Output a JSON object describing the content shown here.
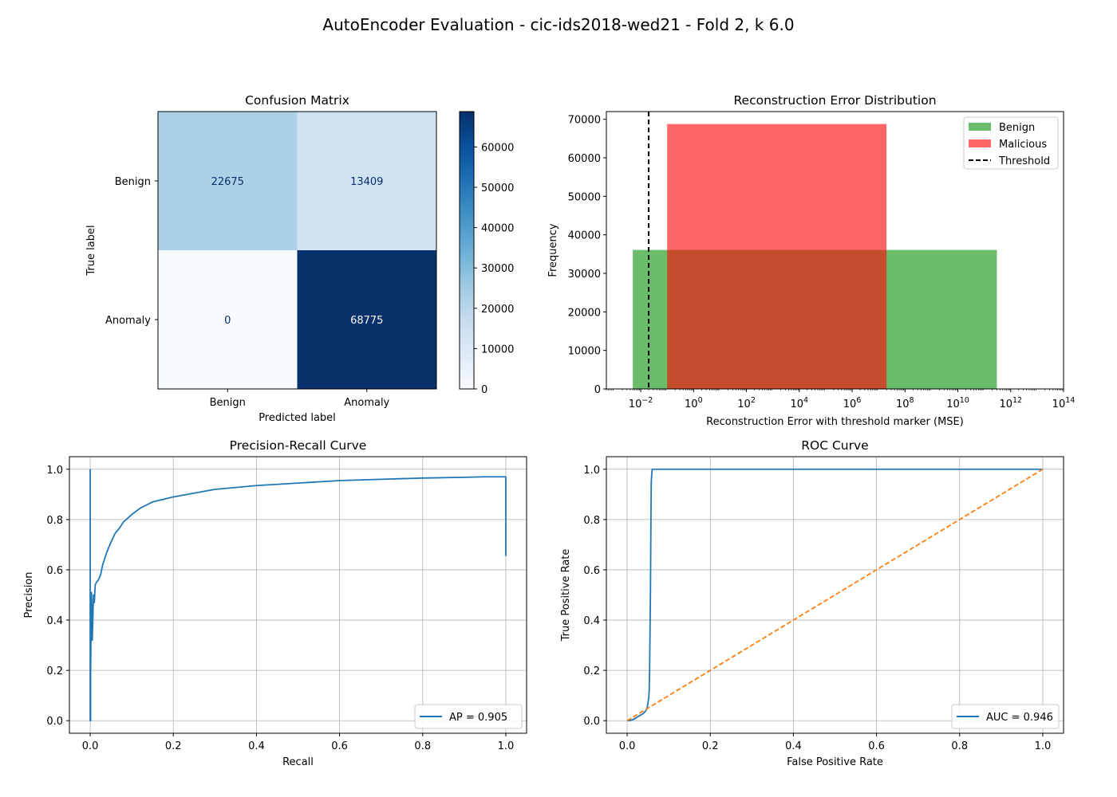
{
  "suptitle": "AutoEncoder Evaluation - cic-ids2018-wed21 - Fold 2, k 6.0",
  "chart_data": [
    {
      "type": "heatmap",
      "title": "Confusion Matrix",
      "xlabel": "Predicted label",
      "ylabel": "True label",
      "x_categories": [
        "Benign",
        "Anomaly"
      ],
      "y_categories": [
        "Benign",
        "Anomaly"
      ],
      "matrix": [
        [
          22675,
          13409
        ],
        [
          0,
          68775
        ]
      ],
      "colormap": "Blues",
      "colorbar": {
        "min": 0,
        "max": 68775,
        "ticks": [
          0,
          10000,
          20000,
          30000,
          40000,
          50000,
          60000
        ]
      }
    },
    {
      "type": "bar",
      "title": "Reconstruction Error Distribution",
      "xlabel": "Reconstruction Error with threshold marker (MSE)",
      "ylabel": "Frequency",
      "xscale": "log",
      "xlim": [
        0.0005,
        100000000000000.0
      ],
      "ylim": [
        0,
        72000
      ],
      "xtick_exponents": [
        -2,
        0,
        2,
        4,
        6,
        8,
        10,
        12,
        14
      ],
      "yticks": [
        0,
        10000,
        20000,
        30000,
        40000,
        50000,
        60000,
        70000
      ],
      "legend_position": "top-right",
      "series": [
        {
          "name": "Benign",
          "color": "#2ca02c",
          "opacity": 0.7,
          "bins": [
            {
              "x_start": 0.005,
              "x_end": 300000000000.0,
              "count": 36084
            }
          ]
        },
        {
          "name": "Malicious",
          "color": "#ff0000",
          "opacity": 0.6,
          "bins": [
            {
              "x_start": 0.1,
              "x_end": 20000000.0,
              "count": 68775
            }
          ]
        }
      ],
      "threshold": {
        "name": "Threshold",
        "x": 0.02,
        "style": "dashed",
        "color": "#000000"
      }
    },
    {
      "type": "line",
      "title": "Precision-Recall Curve",
      "xlabel": "Recall",
      "ylabel": "Precision",
      "xlim": [
        -0.05,
        1.05
      ],
      "ylim": [
        -0.05,
        1.05
      ],
      "xticks": [
        "0.0",
        "0.2",
        "0.4",
        "0.6",
        "0.8",
        "1.0"
      ],
      "yticks": [
        "0.0",
        "0.2",
        "0.4",
        "0.6",
        "0.8",
        "1.0"
      ],
      "grid": true,
      "legend_position": "bottom-right",
      "series": [
        {
          "name": "AP = 0.905",
          "color": "#1f77b4",
          "x": [
            0,
            0,
            0.001,
            0.001,
            0.002,
            0.003,
            0.004,
            0.004,
            0.005,
            0.006,
            0.007,
            0.008,
            0.01,
            0.012,
            0.015,
            0.02,
            0.025,
            0.03,
            0.04,
            0.05,
            0.06,
            0.07,
            0.08,
            0.1,
            0.12,
            0.15,
            0.2,
            0.3,
            0.4,
            0.5,
            0.6,
            0.7,
            0.8,
            0.9,
            0.95,
            1.0,
            1.0
          ],
          "y": [
            1.0,
            0.0,
            0.0,
            0.2,
            0.35,
            0.51,
            0.45,
            0.33,
            0.32,
            0.38,
            0.45,
            0.5,
            0.47,
            0.54,
            0.55,
            0.56,
            0.58,
            0.62,
            0.67,
            0.71,
            0.745,
            0.765,
            0.79,
            0.82,
            0.845,
            0.87,
            0.89,
            0.92,
            0.935,
            0.945,
            0.955,
            0.96,
            0.965,
            0.968,
            0.97,
            0.97,
            0.655
          ]
        }
      ]
    },
    {
      "type": "line",
      "title": "ROC Curve",
      "xlabel": "False Positive Rate",
      "ylabel": "True Positive Rate",
      "xlim": [
        -0.05,
        1.05
      ],
      "ylim": [
        -0.05,
        1.05
      ],
      "xticks": [
        "0.0",
        "0.2",
        "0.4",
        "0.6",
        "0.8",
        "1.0"
      ],
      "yticks": [
        "0.0",
        "0.2",
        "0.4",
        "0.6",
        "0.8",
        "1.0"
      ],
      "grid": true,
      "legend_position": "bottom-right",
      "series": [
        {
          "name": "AUC = 0.946",
          "color": "#1f77b4",
          "x": [
            0,
            0.005,
            0.01,
            0.015,
            0.02,
            0.025,
            0.03,
            0.035,
            0.04,
            0.045,
            0.048,
            0.05,
            0.052,
            0.053,
            0.054,
            0.055,
            0.056,
            0.057,
            0.058,
            0.06,
            0.1,
            0.5,
            1.0
          ],
          "y": [
            0,
            0,
            0.002,
            0.005,
            0.01,
            0.015,
            0.02,
            0.025,
            0.03,
            0.04,
            0.05,
            0.07,
            0.09,
            0.12,
            0.2,
            0.35,
            0.5,
            0.75,
            0.95,
            1.0,
            1.0,
            1.0,
            1.0
          ]
        },
        {
          "name": "",
          "color": "#ff7f0e",
          "style": "dashed",
          "x": [
            0,
            1
          ],
          "y": [
            0,
            1
          ]
        }
      ]
    }
  ]
}
